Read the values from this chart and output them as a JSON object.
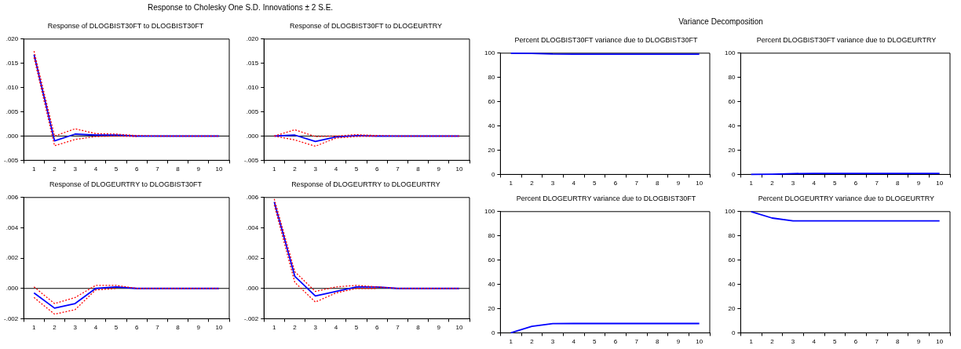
{
  "chart_data": [
    {
      "type": "line",
      "annotations": [
        "Response to Cholesky One S.D. Innovations ± 2 S.E."
      ],
      "title": "Response of DLOGBIST30FT to DLOGBIST30FT",
      "categories": [
        "1",
        "2",
        "3",
        "4",
        "5",
        "6",
        "7",
        "8",
        "9",
        "10"
      ],
      "ylim": [
        -0.005,
        0.02
      ],
      "yticks": [
        {
          "value": -0.005,
          "label": "-.005"
        },
        {
          "value": 0,
          "label": ".000"
        },
        {
          "value": 0.005,
          "label": ".005"
        },
        {
          "value": 0.01,
          "label": ".010"
        },
        {
          "value": 0.015,
          "label": ".015"
        },
        {
          "value": 0.02,
          "label": ".020"
        }
      ],
      "marker": "none",
      "ref_lines": [
        {
          "axis": "y",
          "value": 0,
          "color": "#000000"
        }
      ],
      "series": [
        {
          "color": "#0000ff",
          "line_style": "solid",
          "values": [
            0.0168,
            -0.001,
            0.0004,
            0.0002,
            0.0002,
            0,
            0,
            0,
            0,
            0
          ]
        },
        {
          "color": "#ff0000",
          "line_style": "dashed",
          "values": [
            0.0175,
            0,
            0.0015,
            0.0005,
            0.0004,
            0.0001,
            0,
            0,
            0,
            0
          ]
        },
        {
          "color": "#ff0000",
          "line_style": "dashed",
          "values": [
            0.0162,
            -0.002,
            -0.0007,
            -0.0001,
            0,
            -0.0001,
            null,
            null,
            null,
            null
          ]
        }
      ]
    },
    {
      "type": "line",
      "title": "Response of DLOGBIST30FT to DLOGEURTRY",
      "categories": [
        "1",
        "2",
        "3",
        "4",
        "5",
        "6",
        "7",
        "8",
        "9",
        "10"
      ],
      "ylim": [
        -0.005,
        0.02
      ],
      "yticks": [
        {
          "value": -0.005,
          "label": "-.005"
        },
        {
          "value": 0,
          "label": ".000"
        },
        {
          "value": 0.005,
          "label": ".005"
        },
        {
          "value": 0.01,
          "label": ".010"
        },
        {
          "value": 0.015,
          "label": ".015"
        },
        {
          "value": 0.02,
          "label": ".020"
        }
      ],
      "marker": "none",
      "ref_lines": [
        {
          "axis": "y",
          "value": 0,
          "color": "#000000"
        }
      ],
      "series": [
        {
          "color": "#0000ff",
          "line_style": "solid",
          "values": [
            0,
            0.0002,
            -0.0011,
            -0.0002,
            0.0001,
            0,
            0,
            0,
            0,
            0
          ]
        },
        {
          "color": "#ff0000",
          "line_style": "dashed",
          "values": [
            0,
            0.0013,
            -0.0001,
            0,
            0.0003,
            0.0001,
            0,
            0,
            0,
            0
          ]
        },
        {
          "color": "#ff0000",
          "line_style": "dashed",
          "values": [
            0,
            -0.0008,
            -0.0021,
            -0.0004,
            -0.0001,
            0,
            null,
            null,
            null,
            null
          ]
        }
      ]
    },
    {
      "type": "line",
      "title": "Response of DLOGEURTRY to DLOGBIST30FT",
      "categories": [
        "1",
        "2",
        "3",
        "4",
        "5",
        "6",
        "7",
        "8",
        "9",
        "10"
      ],
      "ylim": [
        -0.002,
        0.006
      ],
      "yticks": [
        {
          "value": -0.002,
          "label": "-.002"
        },
        {
          "value": 0,
          "label": ".000"
        },
        {
          "value": 0.002,
          "label": ".002"
        },
        {
          "value": 0.004,
          "label": ".004"
        },
        {
          "value": 0.006,
          "label": ".006"
        }
      ],
      "marker": "none",
      "ref_lines": [
        {
          "axis": "y",
          "value": 0,
          "color": "#000000"
        }
      ],
      "series": [
        {
          "color": "#0000ff",
          "line_style": "solid",
          "values": [
            -0.0003,
            -0.0013,
            -0.001,
            0,
            0.0001,
            0,
            0,
            0,
            0,
            0
          ]
        },
        {
          "color": "#ff0000",
          "line_style": "dashed",
          "values": [
            0.0001,
            -0.001,
            -0.0006,
            0.0002,
            0.0002,
            0,
            0,
            0,
            0,
            0
          ]
        },
        {
          "color": "#ff0000",
          "line_style": "dashed",
          "values": [
            -0.0006,
            -0.0017,
            -0.0014,
            -0.0001,
            0,
            null,
            null,
            null,
            null,
            null
          ]
        }
      ]
    },
    {
      "type": "line",
      "title": "Response of DLOGEURTRY to DLOGEURTRY",
      "categories": [
        "1",
        "2",
        "3",
        "4",
        "5",
        "6",
        "7",
        "8",
        "9",
        "10"
      ],
      "ylim": [
        -0.002,
        0.006
      ],
      "yticks": [
        {
          "value": -0.002,
          "label": "-.002"
        },
        {
          "value": 0,
          "label": ".000"
        },
        {
          "value": 0.002,
          "label": ".002"
        },
        {
          "value": 0.004,
          "label": ".004"
        },
        {
          "value": 0.006,
          "label": ".006"
        }
      ],
      "marker": "none",
      "ref_lines": [
        {
          "axis": "y",
          "value": 0,
          "color": "#000000"
        }
      ],
      "series": [
        {
          "color": "#0000ff",
          "line_style": "solid",
          "values": [
            0.0057,
            0.0008,
            -0.0005,
            -0.0002,
            0.0001,
            0.0001,
            0,
            0,
            0,
            0
          ]
        },
        {
          "color": "#ff0000",
          "line_style": "dashed",
          "values": [
            0.0059,
            0.0011,
            -0.0002,
            0.0001,
            0.0002,
            0.0001,
            0,
            0,
            0,
            0
          ]
        },
        {
          "color": "#ff0000",
          "line_style": "dashed",
          "values": [
            0.0055,
            0.0004,
            -0.0009,
            -0.0003,
            0,
            0,
            null,
            null,
            null,
            null
          ]
        }
      ]
    },
    {
      "type": "line",
      "annotations": [
        "Variance Decomposition"
      ],
      "title": "Percent DLOGBIST30FT variance due to DLOGBIST30FT",
      "categories": [
        "1",
        "2",
        "3",
        "4",
        "5",
        "6",
        "7",
        "8",
        "9",
        "10"
      ],
      "ylim": [
        0,
        100
      ],
      "yticks": [
        0,
        20,
        40,
        60,
        80,
        100
      ],
      "marker": "none",
      "series": [
        {
          "color": "#0000ff",
          "line_style": "solid",
          "values": [
            100,
            99.8,
            99.3,
            99.2,
            99.2,
            99.2,
            99.2,
            99.2,
            99.2,
            99.2
          ]
        }
      ]
    },
    {
      "type": "line",
      "title": "Percent DLOGBIST30FT variance due to DLOGEURTRY",
      "categories": [
        "1",
        "2",
        "3",
        "4",
        "5",
        "6",
        "7",
        "8",
        "9",
        "10"
      ],
      "ylim": [
        0,
        100
      ],
      "yticks": [
        0,
        20,
        40,
        60,
        80,
        100
      ],
      "marker": "none",
      "series": [
        {
          "color": "#0000ff",
          "line_style": "solid",
          "values": [
            0,
            0.2,
            0.7,
            0.8,
            0.8,
            0.8,
            0.8,
            0.8,
            0.8,
            0.8
          ]
        }
      ]
    },
    {
      "type": "line",
      "title": "Percent DLOGEURTRY variance due to DLOGBIST30FT",
      "categories": [
        "1",
        "2",
        "3",
        "4",
        "5",
        "6",
        "7",
        "8",
        "9",
        "10"
      ],
      "ylim": [
        0,
        100
      ],
      "yticks": [
        0,
        20,
        40,
        60,
        80,
        100
      ],
      "marker": "none",
      "series": [
        {
          "color": "#0000ff",
          "line_style": "solid",
          "values": [
            0,
            5.3,
            7.6,
            7.7,
            7.7,
            7.7,
            7.7,
            7.7,
            7.7,
            7.7
          ]
        }
      ]
    },
    {
      "type": "line",
      "title": "Percent DLOGEURTRY variance due to DLOGEURTRY",
      "categories": [
        "1",
        "2",
        "3",
        "4",
        "5",
        "6",
        "7",
        "8",
        "9",
        "10"
      ],
      "ylim": [
        0,
        100
      ],
      "yticks": [
        0,
        20,
        40,
        60,
        80,
        100
      ],
      "marker": "none",
      "series": [
        {
          "color": "#0000ff",
          "line_style": "solid",
          "values": [
            100,
            94.7,
            92.4,
            92.3,
            92.3,
            92.3,
            92.3,
            92.3,
            92.3,
            92.3
          ]
        }
      ]
    }
  ]
}
